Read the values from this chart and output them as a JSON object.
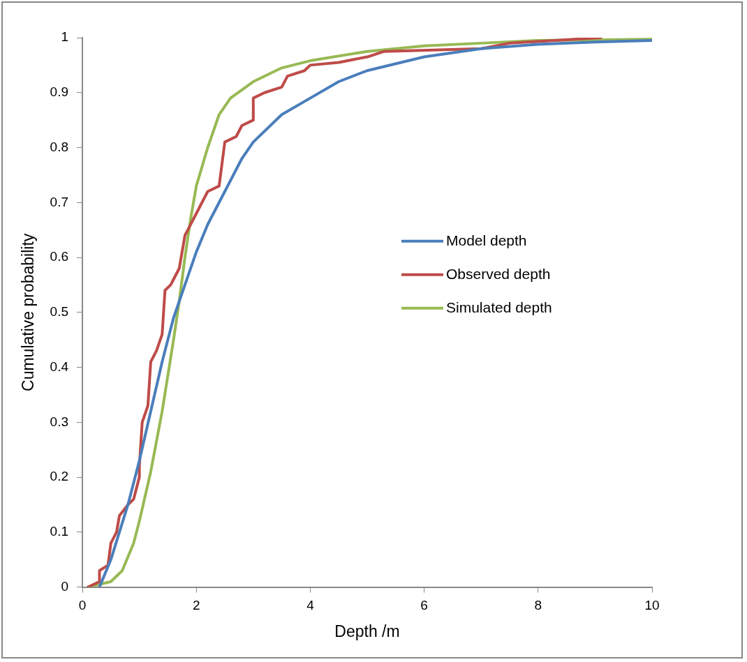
{
  "chart_data": {
    "type": "line",
    "xlabel": "Depth /m",
    "ylabel": "Cumulative probability",
    "xlim": [
      0,
      10
    ],
    "ylim": [
      0,
      1
    ],
    "xticks": [
      0,
      2,
      4,
      6,
      8,
      10
    ],
    "yticks": [
      0,
      0.1,
      0.2,
      0.3,
      0.4,
      0.5,
      0.6,
      0.7,
      0.8,
      0.9,
      1
    ],
    "grid": false,
    "legend": "right",
    "marker": "none",
    "line_style": "solid",
    "series": [
      {
        "name": "Model depth",
        "color": "#4a7ebb",
        "x": [
          0.3,
          0.5,
          0.8,
          1.0,
          1.2,
          1.4,
          1.6,
          1.8,
          2.0,
          2.2,
          2.5,
          2.8,
          3.0,
          3.5,
          4.0,
          4.5,
          5,
          6,
          7,
          8,
          9,
          10
        ],
        "values": [
          0,
          0.05,
          0.15,
          0.23,
          0.32,
          0.41,
          0.49,
          0.55,
          0.61,
          0.66,
          0.72,
          0.78,
          0.81,
          0.86,
          0.89,
          0.92,
          0.94,
          0.965,
          0.98,
          0.988,
          0.992,
          0.995
        ]
      },
      {
        "name": "Observed depth",
        "color": "#be4b48",
        "x": [
          0.1,
          0.3,
          0.3,
          0.45,
          0.5,
          0.6,
          0.65,
          0.8,
          0.9,
          1.0,
          1.0,
          1.05,
          1.15,
          1.2,
          1.3,
          1.4,
          1.45,
          1.55,
          1.6,
          1.7,
          1.8,
          1.85,
          2.0,
          2.2,
          2.4,
          2.5,
          2.7,
          2.8,
          3.0,
          3.0,
          3.2,
          3.5,
          3.6,
          3.9,
          4.0,
          4.5,
          5.0,
          5.3,
          7.0,
          7.5,
          9.1
        ],
        "values": [
          0,
          0.01,
          0.03,
          0.04,
          0.08,
          0.1,
          0.13,
          0.15,
          0.16,
          0.2,
          0.22,
          0.3,
          0.33,
          0.41,
          0.43,
          0.46,
          0.54,
          0.55,
          0.56,
          0.58,
          0.64,
          0.65,
          0.68,
          0.72,
          0.73,
          0.81,
          0.82,
          0.84,
          0.85,
          0.89,
          0.9,
          0.91,
          0.93,
          0.94,
          0.95,
          0.955,
          0.965,
          0.975,
          0.98,
          0.99,
          1.0
        ]
      },
      {
        "name": "Simulated depth",
        "color": "#98b954",
        "x": [
          0.1,
          0.5,
          0.7,
          0.9,
          1.0,
          1.2,
          1.4,
          1.6,
          1.7,
          1.8,
          1.9,
          2.0,
          2.2,
          2.4,
          2.6,
          3.0,
          3.5,
          4,
          5,
          6,
          7,
          8,
          10
        ],
        "values": [
          0,
          0.01,
          0.03,
          0.08,
          0.12,
          0.21,
          0.32,
          0.45,
          0.52,
          0.6,
          0.67,
          0.73,
          0.8,
          0.86,
          0.89,
          0.92,
          0.945,
          0.958,
          0.975,
          0.985,
          0.99,
          0.995,
          0.997
        ]
      }
    ]
  }
}
